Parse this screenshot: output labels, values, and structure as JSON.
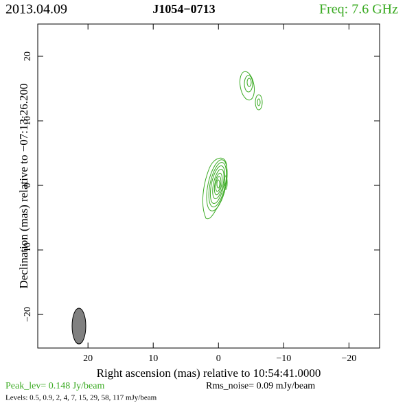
{
  "chart_data": {
    "type": "contour",
    "date": "2013.04.09",
    "title": "J1054−0713",
    "frequency": "Freq: 7.6 GHz",
    "x_label": "Right ascension (mas) relative to 10:54:41.0000",
    "y_label": "Declination (mas) relative to −07:13:26.200",
    "peak": "Peak_lev=  0.148 Jy/beam",
    "rms": "Rms_noise= 0.09 mJy/beam",
    "levels": "Levels: 0.5, 0.9,   2,   4,   7,  15,  29,  58, 117 mJy/beam",
    "xlim": [
      27.7,
      -24.7
    ],
    "ylim": [
      -25.2,
      25
    ],
    "xticks": [
      20,
      10,
      0,
      {
        "value": -10,
        "label": "−10"
      },
      {
        "value": -20,
        "label": "−20"
      }
    ],
    "yticks": [
      {
        "value": -20,
        "label": "−20"
      },
      {
        "value": -10,
        "label": "−10"
      },
      0,
      10,
      20
    ],
    "color": "#3aaa22"
  }
}
